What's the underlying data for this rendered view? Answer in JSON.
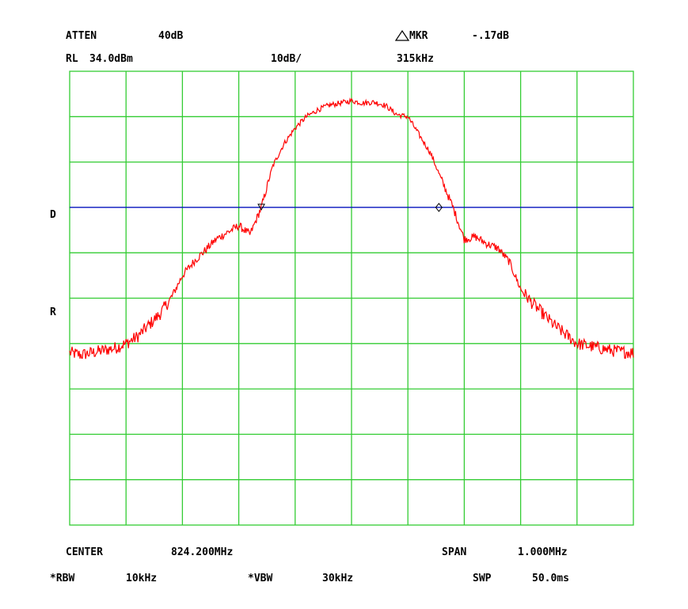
{
  "header": {
    "atten_label": "ATTEN",
    "atten_value": "40dB",
    "mkr_label": "MKR",
    "mkr_value": "-.17dB",
    "rl_label": "RL",
    "rl_value": "34.0dBm",
    "scale": "10dB/",
    "mkr_freq": "315kHz"
  },
  "side": {
    "d_label": "D",
    "r_label": "R"
  },
  "footer": {
    "center_label": "CENTER",
    "center_value": "824.200MHz",
    "span_label": "SPAN",
    "span_value": "1.000MHz",
    "rbw_label": "*RBW",
    "rbw_value": "10kHz",
    "vbw_label": "*VBW",
    "vbw_value": "30kHz",
    "swp_label": "SWP",
    "swp_value": "50.0ms"
  },
  "colors": {
    "grid": "#33cc33",
    "trace": "#ff0000",
    "display_line": "#0000cc",
    "marker": "#000000"
  },
  "chart_data": {
    "type": "line",
    "title": "",
    "xlabel": "",
    "ylabel": "",
    "center_mhz": 824.2,
    "span_mhz": 1.0,
    "xlim": [
      823.7,
      824.7
    ],
    "reference_level_dbm": 34.0,
    "scale_db_per_div": 10,
    "ylim": [
      -66.0,
      34.0
    ],
    "grid": true,
    "divisions": {
      "x": 10,
      "y": 10
    },
    "display_line_dbm": 4.0,
    "markers": [
      {
        "type": "reference",
        "x_mhz": 824.04,
        "y_dbm": 4.0
      },
      {
        "type": "delta",
        "x_mhz": 824.355,
        "y_dbm": 4.0,
        "delta_db": -0.17,
        "delta_khz": 315
      }
    ],
    "series": [
      {
        "x": [
          823.7,
          823.72,
          823.74,
          823.76,
          823.78,
          823.8,
          823.82,
          823.84,
          823.86,
          823.88,
          823.9,
          823.92,
          823.94,
          823.96,
          823.98,
          824.0,
          824.01,
          824.02,
          824.04,
          824.06,
          824.08,
          824.1,
          824.12,
          824.14,
          824.16,
          824.18,
          824.2,
          824.22,
          824.24,
          824.26,
          824.28,
          824.29,
          824.3,
          824.32,
          824.34,
          824.36,
          824.38,
          824.4,
          824.42,
          824.44,
          824.46,
          824.48,
          824.5,
          824.52,
          824.54,
          824.56,
          824.58,
          824.6,
          824.62,
          824.64,
          824.66,
          824.68,
          824.7
        ],
        "y": [
          -28,
          -28.5,
          -28,
          -27.5,
          -27,
          -26,
          -24.5,
          -22,
          -19.5,
          -16,
          -11,
          -8,
          -5.5,
          -3,
          -1.5,
          0,
          -1,
          -2,
          4,
          13,
          18,
          21.5,
          24,
          25.5,
          26.5,
          27,
          27.5,
          27,
          27.2,
          26.5,
          24.5,
          24.2,
          24,
          20,
          16,
          10,
          4,
          -3,
          -2.5,
          -4,
          -5,
          -8,
          -14,
          -17,
          -19.5,
          -22,
          -24,
          -26,
          -26.5,
          -27,
          -27.5,
          -27.8,
          -28
        ]
      }
    ]
  }
}
